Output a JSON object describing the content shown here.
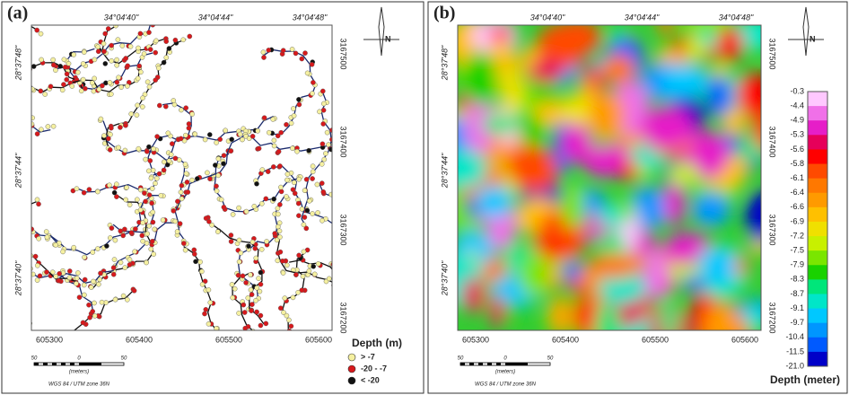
{
  "panels": [
    {
      "label": "(a)",
      "top_labels": [
        "34°04'40\"",
        "34°04'44\"",
        "34°04'48\""
      ],
      "left_labels": [
        "28°37'48\"",
        "28°37'44\"",
        "28°37'40\""
      ],
      "right_labels": [
        "3167500",
        "3167400",
        "3167300",
        "3167200"
      ],
      "bottom_labels": [
        "605300",
        "605400",
        "605500",
        "605600"
      ],
      "north": "N",
      "scale": {
        "ticks": [
          "50",
          "0",
          "50"
        ],
        "unit": "(meters)",
        "datum": "WGS 84 / UTM zone 36N"
      }
    },
    {
      "label": "(b)",
      "top_labels": [
        "34°04'40\"",
        "34°04'44\"",
        "34°04'48\""
      ],
      "left_labels": [
        "28°37'48\"",
        "28°37'44\"",
        "28°37'40\""
      ],
      "right_labels": [
        "3167500",
        "3167400",
        "3167300",
        "3167200"
      ],
      "bottom_labels": [
        "605300",
        "605400",
        "605500",
        "605600"
      ],
      "north": "N",
      "scale": {
        "ticks": [
          "50",
          "0",
          "50"
        ],
        "unit": "(meters)",
        "datum": "WGS 84 / UTM zone 36N"
      }
    }
  ],
  "legend_a": {
    "title": "Depth (m)",
    "items": [
      {
        "label": "> -7",
        "color": "#f5f0a0"
      },
      {
        "label": "-20 - -7",
        "color": "#d7191c"
      },
      {
        "label": "< -20",
        "color": "#111111"
      }
    ]
  },
  "legend_b": {
    "title": "Depth (meter)",
    "labels": [
      "-0.3",
      "-4.4",
      "-4.9",
      "-5.3",
      "-5.6",
      "-5.8",
      "-6.1",
      "-6.4",
      "-6.6",
      "-6.9",
      "-7.2",
      "-7.5",
      "-7.9",
      "-8.3",
      "-8.7",
      "-9.1",
      "-9.7",
      "-10.4",
      "-11.5",
      "-21.0"
    ],
    "colors": [
      "#ffc8ff",
      "#f070e8",
      "#e61ec8",
      "#e6005a",
      "#ff0000",
      "#ff4a00",
      "#ff7800",
      "#ff9a00",
      "#ffc000",
      "#f0e000",
      "#c8f000",
      "#7ae600",
      "#19d200",
      "#00e67a",
      "#00e6c8",
      "#00c8ff",
      "#0096ff",
      "#005aff",
      "#0000c8"
    ]
  }
}
